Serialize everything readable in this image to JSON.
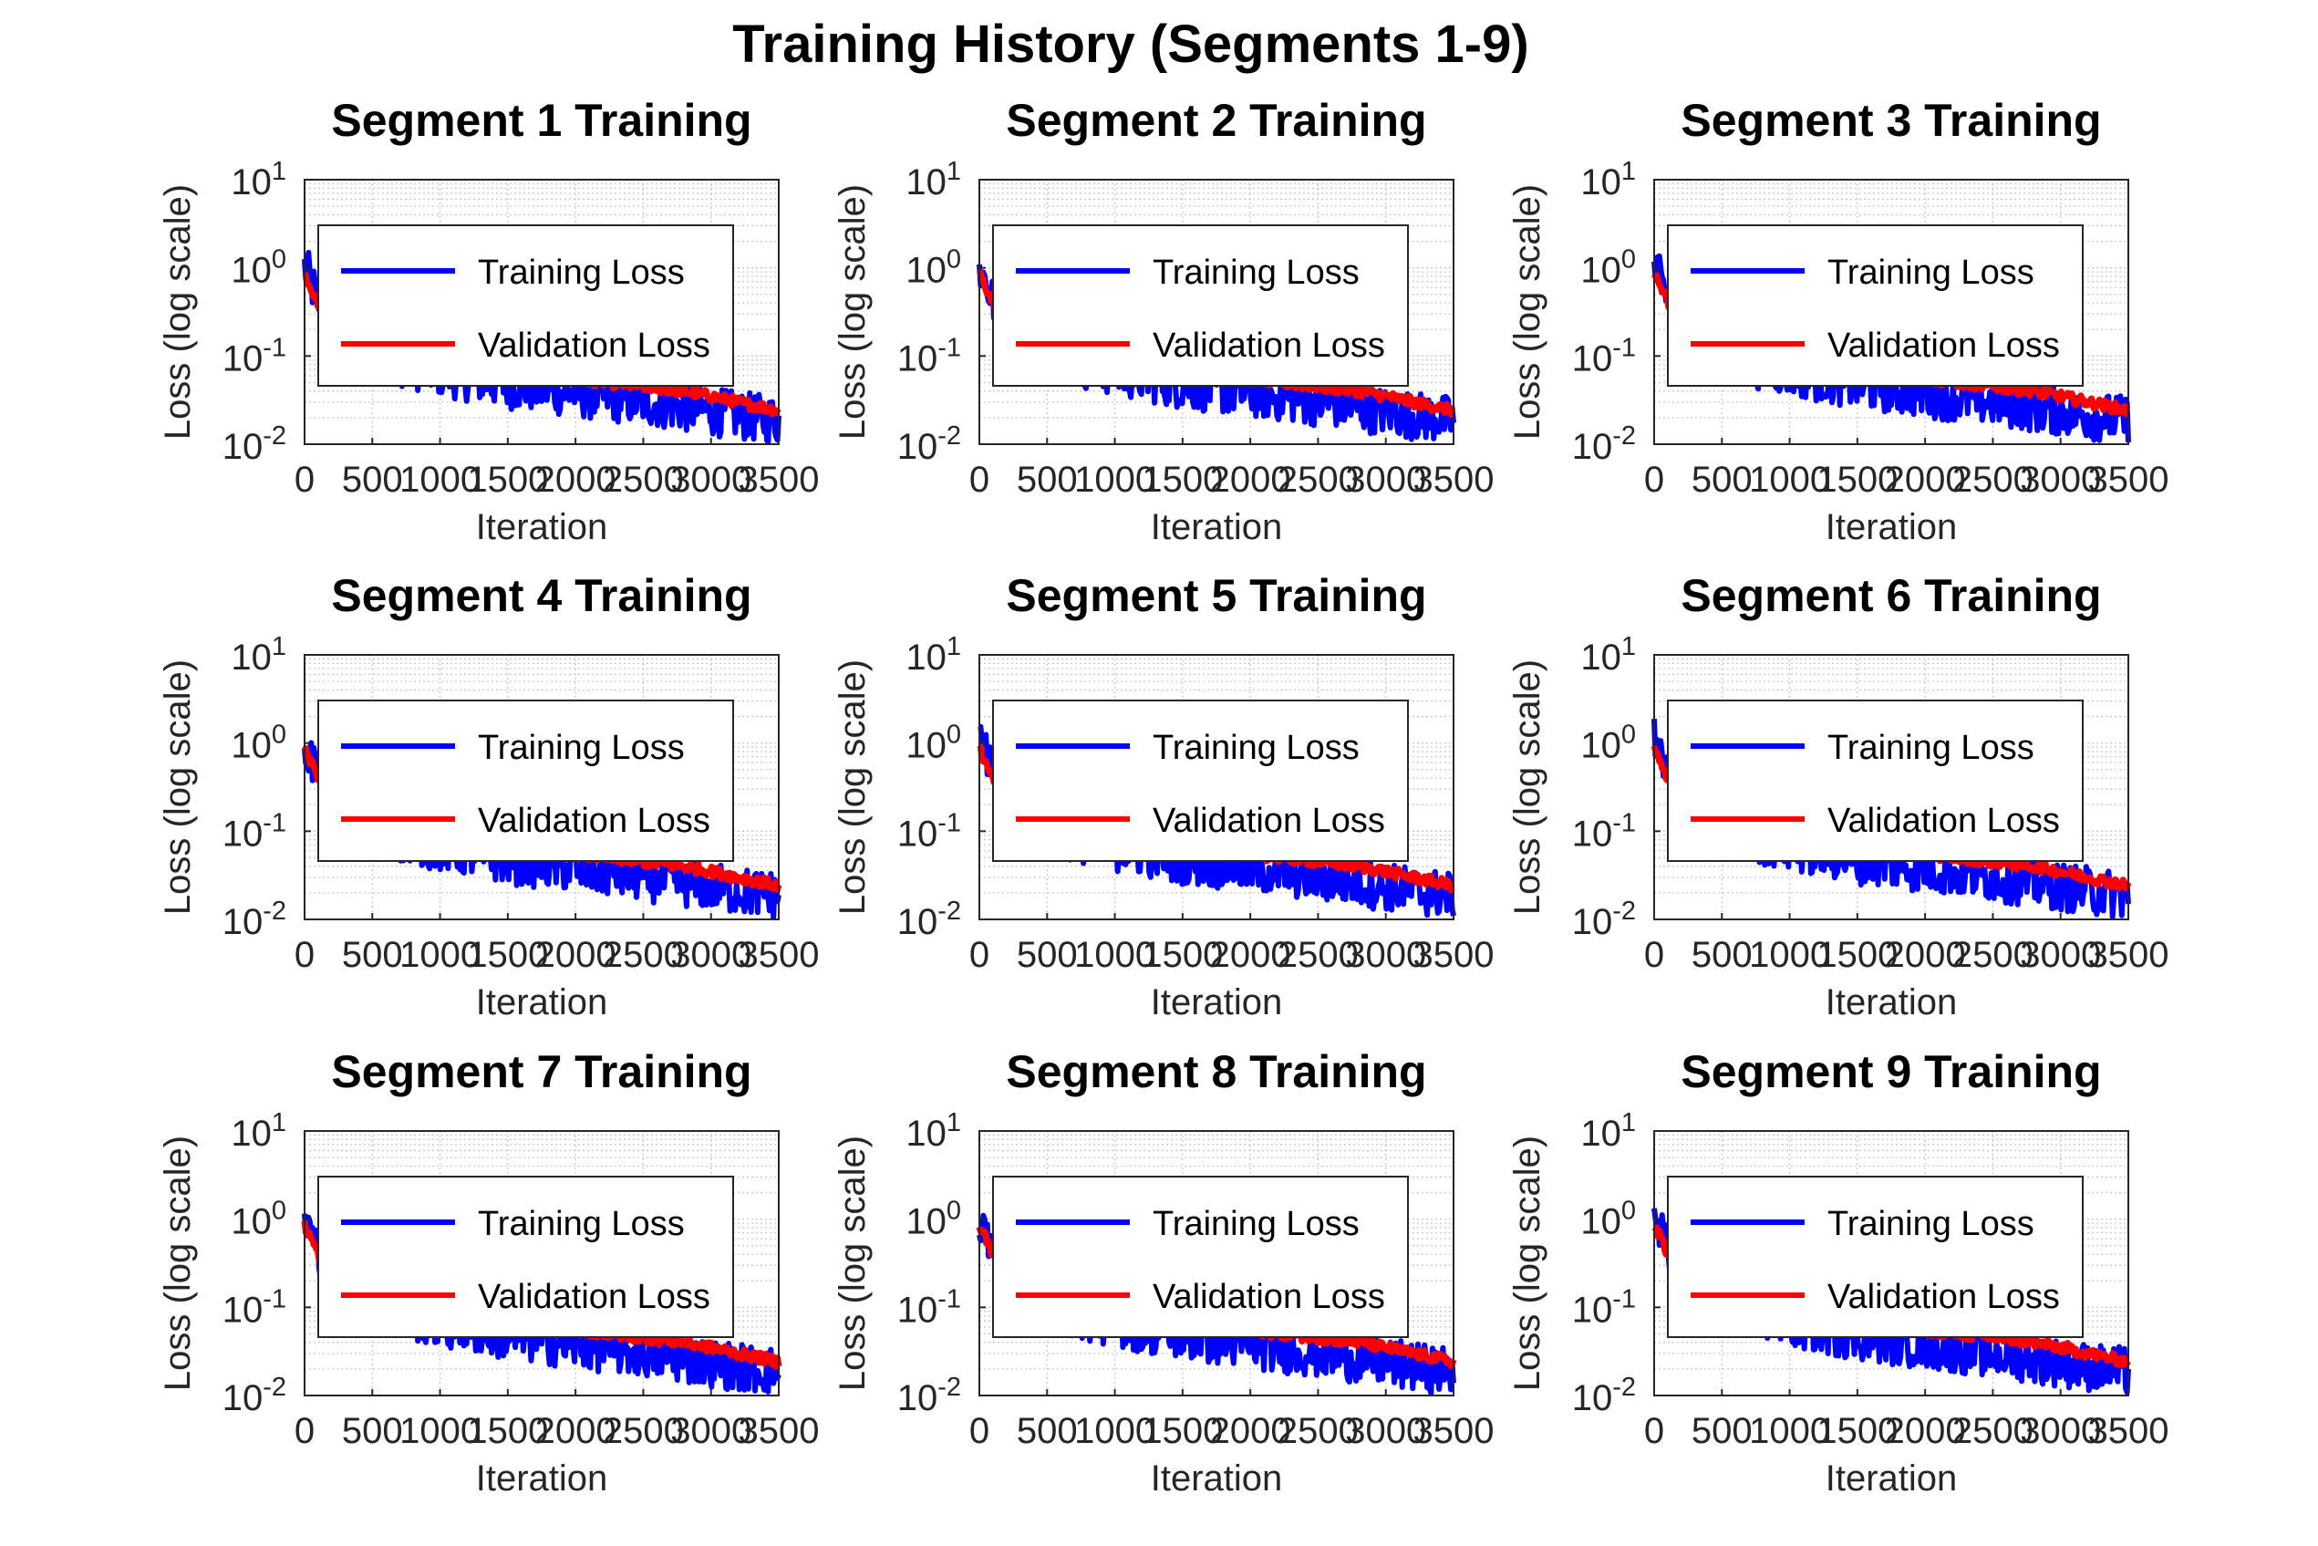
{
  "figure": {
    "title": "Training History (Segments 1-9)"
  },
  "colors": {
    "training": "#0000ff",
    "validation": "#ff0000",
    "grid": "#c8c8c8",
    "axis": "#262626"
  },
  "legend_labels": [
    "Training Loss",
    "Validation Loss"
  ],
  "chart_data": [
    {
      "type": "line",
      "title": "Segment 1 Training",
      "xlabel": "Iteration",
      "ylabel": "Loss (log scale)",
      "xlim": [
        0,
        3500
      ],
      "ylim": [
        0.01,
        10
      ],
      "yscale": "log",
      "grid": true,
      "legend_position": "top-left",
      "x_ticks": [
        "0",
        "500",
        "1000",
        "1500",
        "2000",
        "2500",
        "3000",
        "3500"
      ],
      "y_ticks": [
        "10^-2",
        "10^-1",
        "10^0",
        "10^1"
      ],
      "series": [
        {
          "name": "Training Loss",
          "x": [
            0,
            50,
            100,
            200,
            300,
            500,
            700,
            1000,
            1500,
            2000,
            2500,
            3000,
            3250,
            3500
          ],
          "y": [
            1.1,
            0.7,
            0.45,
            0.3,
            0.2,
            0.12,
            0.09,
            0.07,
            0.05,
            0.04,
            0.032,
            0.025,
            0.022,
            0.02
          ]
        },
        {
          "name": "Validation Loss",
          "x": [
            0,
            50,
            100,
            200,
            500,
            1000,
            1500,
            2000,
            2500,
            2800,
            3000,
            3200,
            3400,
            3500
          ],
          "y": [
            0.85,
            0.6,
            0.4,
            0.25,
            0.14,
            0.09,
            0.07,
            0.055,
            0.045,
            0.04,
            0.035,
            0.03,
            0.026,
            0.024
          ]
        }
      ]
    },
    {
      "type": "line",
      "title": "Segment 2 Training",
      "xlabel": "Iteration",
      "ylabel": "Loss (log scale)",
      "xlim": [
        0,
        3500
      ],
      "ylim": [
        0.01,
        10
      ],
      "yscale": "log",
      "grid": true,
      "legend_position": "top-left",
      "x_ticks": [
        "0",
        "500",
        "1000",
        "1500",
        "2000",
        "2500",
        "3000",
        "3500"
      ],
      "y_ticks": [
        "10^-2",
        "10^-1",
        "10^0",
        "10^1"
      ],
      "series": [
        {
          "name": "Training Loss",
          "x": [
            0,
            50,
            100,
            200,
            300,
            500,
            700,
            1000,
            1500,
            2000,
            2500,
            3000,
            3250,
            3500
          ],
          "y": [
            1.1,
            0.7,
            0.45,
            0.3,
            0.2,
            0.12,
            0.09,
            0.07,
            0.05,
            0.04,
            0.032,
            0.025,
            0.022,
            0.02
          ]
        },
        {
          "name": "Validation Loss",
          "x": [
            0,
            50,
            100,
            200,
            500,
            1000,
            1500,
            2000,
            2500,
            2800,
            3000,
            3200,
            3400,
            3500
          ],
          "y": [
            0.85,
            0.6,
            0.4,
            0.25,
            0.14,
            0.09,
            0.07,
            0.055,
            0.045,
            0.04,
            0.035,
            0.03,
            0.026,
            0.024
          ]
        }
      ]
    },
    {
      "type": "line",
      "title": "Segment 3 Training",
      "xlabel": "Iteration",
      "ylabel": "Loss (log scale)",
      "xlim": [
        0,
        3500
      ],
      "ylim": [
        0.01,
        10
      ],
      "yscale": "log",
      "grid": true,
      "legend_position": "top-left",
      "x_ticks": [
        "0",
        "500",
        "1000",
        "1500",
        "2000",
        "2500",
        "3000",
        "3500"
      ],
      "y_ticks": [
        "10^-2",
        "10^-1",
        "10^0",
        "10^1"
      ],
      "series": [
        {
          "name": "Training Loss",
          "x": [
            0,
            50,
            100,
            200,
            300,
            500,
            700,
            1000,
            1500,
            2000,
            2500,
            3000,
            3250,
            3500
          ],
          "y": [
            1.1,
            0.7,
            0.45,
            0.3,
            0.2,
            0.12,
            0.09,
            0.07,
            0.05,
            0.04,
            0.032,
            0.025,
            0.022,
            0.02
          ]
        },
        {
          "name": "Validation Loss",
          "x": [
            0,
            50,
            100,
            200,
            500,
            1000,
            1500,
            2000,
            2500,
            2800,
            3000,
            3200,
            3400,
            3500
          ],
          "y": [
            0.85,
            0.6,
            0.4,
            0.25,
            0.14,
            0.09,
            0.07,
            0.055,
            0.045,
            0.04,
            0.035,
            0.03,
            0.026,
            0.024
          ]
        }
      ]
    },
    {
      "type": "line",
      "title": "Segment 4 Training",
      "xlabel": "Iteration",
      "ylabel": "Loss (log scale)",
      "xlim": [
        0,
        3500
      ],
      "ylim": [
        0.01,
        10
      ],
      "yscale": "log",
      "grid": true,
      "legend_position": "top-left",
      "x_ticks": [
        "0",
        "500",
        "1000",
        "1500",
        "2000",
        "2500",
        "3000",
        "3500"
      ],
      "y_ticks": [
        "10^-2",
        "10^-1",
        "10^0",
        "10^1"
      ],
      "series": [
        {
          "name": "Training Loss",
          "x": [
            0,
            50,
            100,
            200,
            300,
            500,
            700,
            1000,
            1500,
            2000,
            2500,
            3000,
            3250,
            3500
          ],
          "y": [
            1.1,
            0.7,
            0.45,
            0.3,
            0.2,
            0.12,
            0.09,
            0.07,
            0.05,
            0.04,
            0.032,
            0.025,
            0.022,
            0.02
          ]
        },
        {
          "name": "Validation Loss",
          "x": [
            0,
            50,
            100,
            200,
            500,
            1000,
            1500,
            2000,
            2500,
            2800,
            3000,
            3200,
            3400,
            3500
          ],
          "y": [
            0.85,
            0.6,
            0.4,
            0.25,
            0.14,
            0.09,
            0.07,
            0.055,
            0.045,
            0.04,
            0.035,
            0.03,
            0.026,
            0.024
          ]
        }
      ]
    },
    {
      "type": "line",
      "title": "Segment 5 Training",
      "xlabel": "Iteration",
      "ylabel": "Loss (log scale)",
      "xlim": [
        0,
        3500
      ],
      "ylim": [
        0.01,
        10
      ],
      "yscale": "log",
      "grid": true,
      "legend_position": "top-left",
      "x_ticks": [
        "0",
        "500",
        "1000",
        "1500",
        "2000",
        "2500",
        "3000",
        "3500"
      ],
      "y_ticks": [
        "10^-2",
        "10^-1",
        "10^0",
        "10^1"
      ],
      "series": [
        {
          "name": "Training Loss",
          "x": [
            0,
            50,
            100,
            200,
            300,
            500,
            700,
            1000,
            1500,
            2000,
            2500,
            3000,
            3250,
            3500
          ],
          "y": [
            1.1,
            0.7,
            0.45,
            0.3,
            0.2,
            0.12,
            0.09,
            0.07,
            0.05,
            0.04,
            0.032,
            0.025,
            0.022,
            0.02
          ]
        },
        {
          "name": "Validation Loss",
          "x": [
            0,
            50,
            100,
            200,
            500,
            1000,
            1500,
            2000,
            2500,
            2800,
            3000,
            3200,
            3400,
            3500
          ],
          "y": [
            0.85,
            0.6,
            0.4,
            0.25,
            0.14,
            0.09,
            0.07,
            0.055,
            0.045,
            0.04,
            0.035,
            0.03,
            0.026,
            0.024
          ]
        }
      ]
    },
    {
      "type": "line",
      "title": "Segment 6 Training",
      "xlabel": "Iteration",
      "ylabel": "Loss (log scale)",
      "xlim": [
        0,
        3500
      ],
      "ylim": [
        0.01,
        10
      ],
      "yscale": "log",
      "grid": true,
      "legend_position": "top-left",
      "x_ticks": [
        "0",
        "500",
        "1000",
        "1500",
        "2000",
        "2500",
        "3000",
        "3500"
      ],
      "y_ticks": [
        "10^-2",
        "10^-1",
        "10^0",
        "10^1"
      ],
      "series": [
        {
          "name": "Training Loss",
          "x": [
            0,
            50,
            100,
            200,
            300,
            500,
            700,
            1000,
            1500,
            2000,
            2500,
            3000,
            3250,
            3500
          ],
          "y": [
            1.1,
            0.7,
            0.45,
            0.3,
            0.2,
            0.12,
            0.09,
            0.07,
            0.05,
            0.04,
            0.032,
            0.025,
            0.022,
            0.02
          ]
        },
        {
          "name": "Validation Loss",
          "x": [
            0,
            50,
            100,
            200,
            500,
            1000,
            1500,
            2000,
            2500,
            2800,
            3000,
            3200,
            3400,
            3500
          ],
          "y": [
            0.85,
            0.6,
            0.4,
            0.25,
            0.14,
            0.09,
            0.07,
            0.055,
            0.045,
            0.04,
            0.035,
            0.03,
            0.026,
            0.024
          ]
        }
      ]
    },
    {
      "type": "line",
      "title": "Segment 7 Training",
      "xlabel": "Iteration",
      "ylabel": "Loss (log scale)",
      "xlim": [
        0,
        3500
      ],
      "ylim": [
        0.01,
        10
      ],
      "yscale": "log",
      "grid": true,
      "legend_position": "top-left",
      "x_ticks": [
        "0",
        "500",
        "1000",
        "1500",
        "2000",
        "2500",
        "3000",
        "3500"
      ],
      "y_ticks": [
        "10^-2",
        "10^-1",
        "10^0",
        "10^1"
      ],
      "series": [
        {
          "name": "Training Loss",
          "x": [
            0,
            50,
            100,
            200,
            300,
            500,
            700,
            1000,
            1500,
            2000,
            2500,
            3000,
            3250,
            3500
          ],
          "y": [
            1.1,
            0.7,
            0.45,
            0.3,
            0.2,
            0.12,
            0.09,
            0.07,
            0.05,
            0.04,
            0.032,
            0.025,
            0.022,
            0.02
          ]
        },
        {
          "name": "Validation Loss",
          "x": [
            0,
            50,
            100,
            200,
            500,
            1000,
            1500,
            2000,
            2500,
            2800,
            3000,
            3200,
            3400,
            3500
          ],
          "y": [
            0.85,
            0.6,
            0.4,
            0.25,
            0.14,
            0.09,
            0.07,
            0.055,
            0.045,
            0.04,
            0.035,
            0.03,
            0.026,
            0.024
          ]
        }
      ]
    },
    {
      "type": "line",
      "title": "Segment 8 Training",
      "xlabel": "Iteration",
      "ylabel": "Loss (log scale)",
      "xlim": [
        0,
        3500
      ],
      "ylim": [
        0.01,
        10
      ],
      "yscale": "log",
      "grid": true,
      "legend_position": "top-left",
      "x_ticks": [
        "0",
        "500",
        "1000",
        "1500",
        "2000",
        "2500",
        "3000",
        "3500"
      ],
      "y_ticks": [
        "10^-2",
        "10^-1",
        "10^0",
        "10^1"
      ],
      "series": [
        {
          "name": "Training Loss",
          "x": [
            0,
            50,
            100,
            200,
            300,
            500,
            700,
            1000,
            1500,
            2000,
            2500,
            3000,
            3250,
            3500
          ],
          "y": [
            1.1,
            0.7,
            0.45,
            0.3,
            0.2,
            0.12,
            0.09,
            0.07,
            0.05,
            0.04,
            0.032,
            0.025,
            0.022,
            0.02
          ]
        },
        {
          "name": "Validation Loss",
          "x": [
            0,
            50,
            100,
            200,
            500,
            1000,
            1500,
            2000,
            2500,
            2800,
            3000,
            3200,
            3400,
            3500
          ],
          "y": [
            0.85,
            0.6,
            0.4,
            0.25,
            0.14,
            0.09,
            0.07,
            0.055,
            0.045,
            0.04,
            0.035,
            0.03,
            0.026,
            0.024
          ]
        }
      ]
    },
    {
      "type": "line",
      "title": "Segment 9 Training",
      "xlabel": "Iteration",
      "ylabel": "Loss (log scale)",
      "xlim": [
        0,
        3500
      ],
      "ylim": [
        0.01,
        10
      ],
      "yscale": "log",
      "grid": true,
      "legend_position": "top-left",
      "x_ticks": [
        "0",
        "500",
        "1000",
        "1500",
        "2000",
        "2500",
        "3000",
        "3500"
      ],
      "y_ticks": [
        "10^-2",
        "10^-1",
        "10^0",
        "10^1"
      ],
      "series": [
        {
          "name": "Training Loss",
          "x": [
            0,
            50,
            100,
            200,
            300,
            500,
            700,
            1000,
            1500,
            2000,
            2500,
            3000,
            3250,
            3500
          ],
          "y": [
            1.1,
            0.7,
            0.45,
            0.3,
            0.2,
            0.12,
            0.09,
            0.07,
            0.05,
            0.04,
            0.032,
            0.025,
            0.022,
            0.02
          ]
        },
        {
          "name": "Validation Loss",
          "x": [
            0,
            50,
            100,
            200,
            500,
            1000,
            1500,
            2000,
            2500,
            2800,
            3000,
            3200,
            3400,
            3500
          ],
          "y": [
            0.85,
            0.6,
            0.4,
            0.25,
            0.14,
            0.09,
            0.07,
            0.055,
            0.045,
            0.04,
            0.035,
            0.03,
            0.026,
            0.024
          ]
        }
      ]
    }
  ]
}
